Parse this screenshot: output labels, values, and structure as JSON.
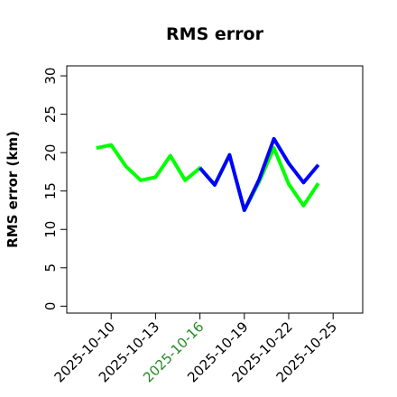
{
  "chart_data": {
    "type": "line",
    "title": "RMS error",
    "ylabel": "RMS error (km)",
    "x": [
      "2025-10-09",
      "2025-10-10",
      "2025-10-11",
      "2025-10-12",
      "2025-10-13",
      "2025-10-14",
      "2025-10-15",
      "2025-10-16",
      "2025-10-17",
      "2025-10-18",
      "2025-10-19",
      "2025-10-20",
      "2025-10-21",
      "2025-10-22",
      "2025-10-23",
      "2025-10-24"
    ],
    "series": [
      {
        "color": "#00ff00",
        "values": [
          20.6,
          21.0,
          18.2,
          16.4,
          16.8,
          19.6,
          16.4,
          18.0,
          15.8,
          19.7,
          12.5,
          16.2,
          20.6,
          15.9,
          13.1,
          16.0
        ]
      },
      {
        "color": "#0000ff",
        "values": [
          null,
          null,
          null,
          null,
          null,
          null,
          null,
          18.0,
          15.8,
          19.7,
          12.5,
          16.5,
          21.8,
          18.6,
          16.1,
          18.4
        ]
      }
    ],
    "xlim": [
      "2025-10-07",
      "2025-10-27"
    ],
    "xticks": [
      "2025-10-10",
      "2025-10-13",
      "2025-10-16",
      "2025-10-19",
      "2025-10-22",
      "2025-10-25"
    ],
    "xtick_colors": [
      "#000000",
      "#000000",
      "#228b22",
      "#000000",
      "#000000",
      "#000000"
    ],
    "ylim": [
      -0.9,
      31.3
    ],
    "yticks": [
      0,
      5,
      10,
      15,
      20,
      25,
      30
    ],
    "grid": false
  }
}
